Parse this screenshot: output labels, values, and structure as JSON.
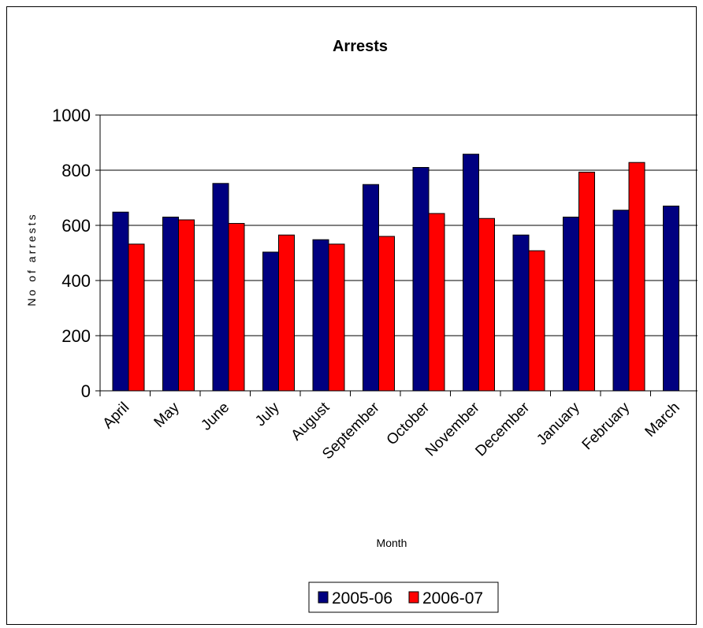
{
  "chart_data": {
    "type": "bar",
    "title": "Arrests",
    "xlabel": "Month",
    "ylabel": "No of arrests",
    "ylim": [
      0,
      1000
    ],
    "yticks": [
      0,
      200,
      400,
      600,
      800,
      1000
    ],
    "grid": true,
    "legend_position": "bottom",
    "categories": [
      "April",
      "May",
      "June",
      "July",
      "August",
      "September",
      "October",
      "November",
      "December",
      "January",
      "February",
      "March"
    ],
    "series": [
      {
        "name": "2005-06",
        "color": "#000080",
        "values": [
          648,
          630,
          752,
          503,
          548,
          748,
          810,
          858,
          565,
          630,
          655,
          670
        ]
      },
      {
        "name": "2006-07",
        "color": "#ff0000",
        "values": [
          532,
          620,
          607,
          565,
          532,
          560,
          643,
          625,
          508,
          793,
          828,
          null
        ]
      }
    ]
  }
}
